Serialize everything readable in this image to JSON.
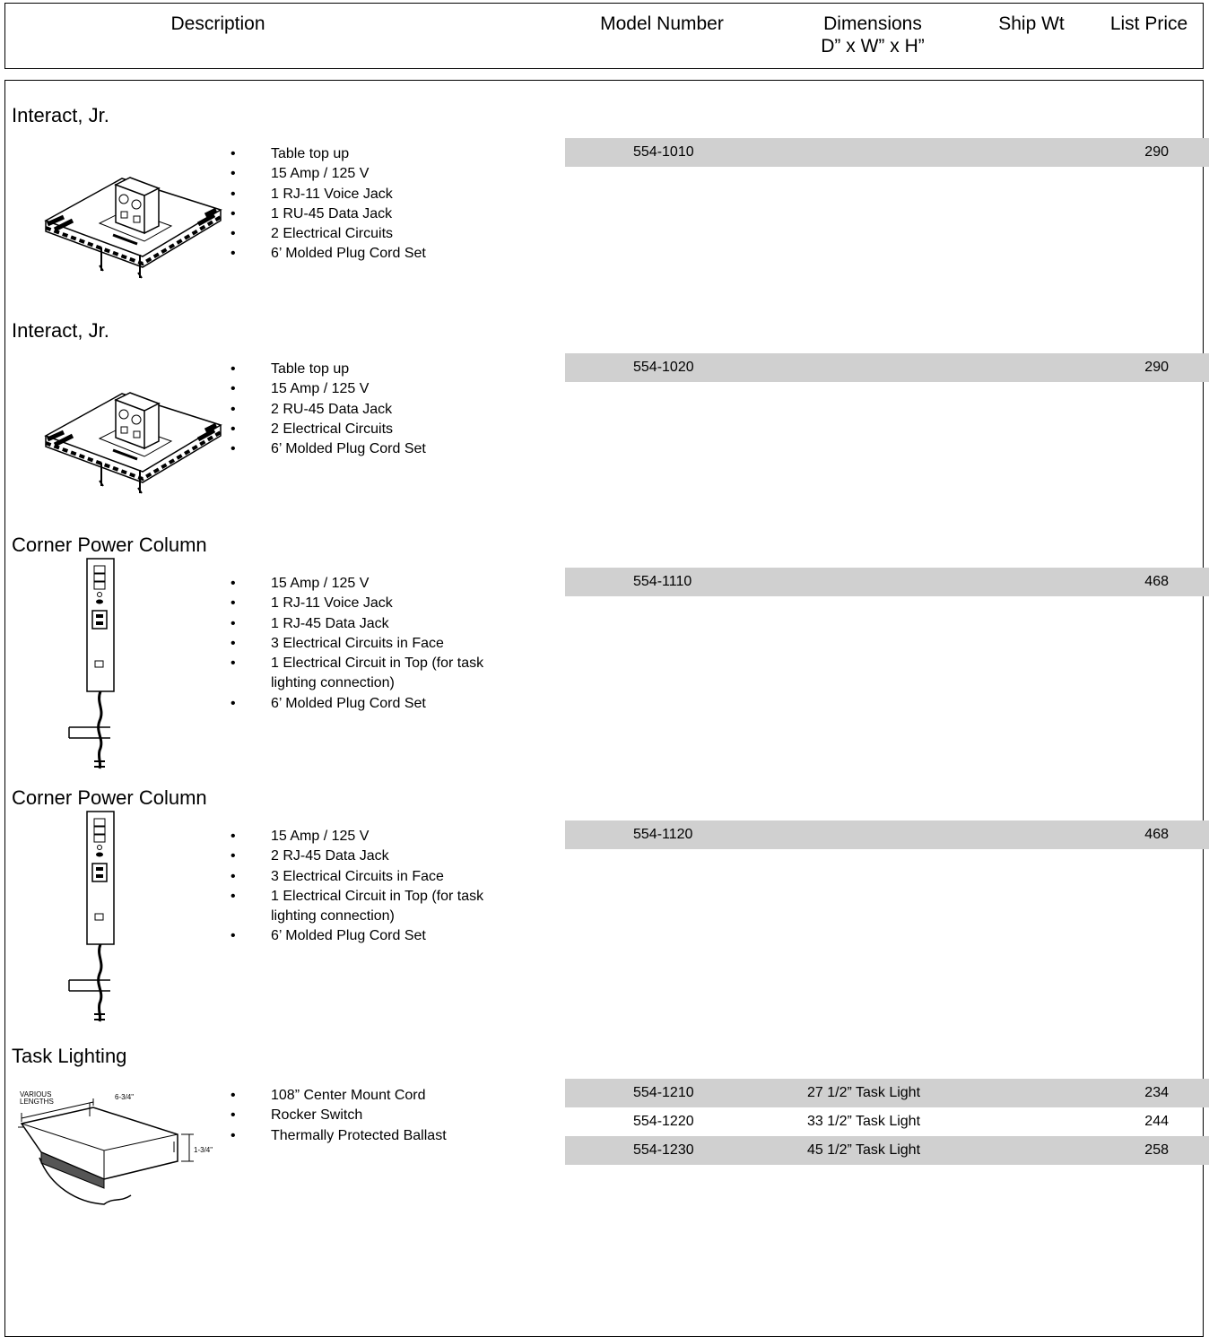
{
  "header": {
    "description": "Description",
    "model_number": "Model Number",
    "dimensions": [
      "Dimensions",
      "D” x W” x H”"
    ],
    "ship_wt": "Ship Wt",
    "list_price": "List Price"
  },
  "sections": [
    {
      "title": "Interact, Jr.",
      "bullets": [
        "Table top up",
        "15 Amp / 125 V",
        "1 RJ-11 Voice Jack",
        "1 RU-45 Data Jack",
        "2 Electrical Circuits",
        "6’ Molded Plug Cord Set"
      ],
      "rows": [
        {
          "model_number": "554-1010",
          "list_price": 290
        }
      ]
    },
    {
      "title": "Interact, Jr.",
      "bullets": [
        "Table top up",
        "15 Amp / 125 V",
        "2 RU-45 Data Jack",
        "2 Electrical Circuits",
        "6’ Molded Plug Cord Set"
      ],
      "rows": [
        {
          "model_number": "554-1020",
          "list_price": 290
        }
      ]
    },
    {
      "title": "Corner Power Column",
      "bullets": [
        "15 Amp / 125 V",
        "1 RJ-11 Voice Jack",
        "1 RJ-45 Data Jack",
        "3 Electrical Circuits in Face",
        "1 Electrical Circuit in Top (for task lighting connection)",
        "6’ Molded Plug Cord Set"
      ],
      "rows": [
        {
          "model_number": "554-1110",
          "list_price": 468
        }
      ]
    },
    {
      "title": "Corner Power Column",
      "bullets": [
        "15 Amp / 125 V",
        "2 RJ-45 Data Jack",
        "3 Electrical Circuits in Face",
        "1 Electrical Circuit in Top (for task lighting connection)",
        "6’ Molded Plug Cord Set"
      ],
      "rows": [
        {
          "model_number": "554-1120",
          "list_price": 468
        }
      ]
    },
    {
      "title": "Task Lighting",
      "bullets": [
        "108” Center Mount Cord",
        "Rocker Switch",
        "Thermally Protected Ballast"
      ],
      "figure_labels": [
        "VARIOUS",
        "LENGTHS",
        "6-3/4\"",
        "1-3/4\""
      ],
      "rows": [
        {
          "model_number": "554-1210",
          "dimensions": "27 1/2” Task Light",
          "list_price": 234
        },
        {
          "model_number": "554-1220",
          "dimensions": "33 1/2” Task Light",
          "list_price": 244
        },
        {
          "model_number": "554-1230",
          "dimensions": "45 1/2” Task Light",
          "list_price": 258
        }
      ]
    }
  ]
}
